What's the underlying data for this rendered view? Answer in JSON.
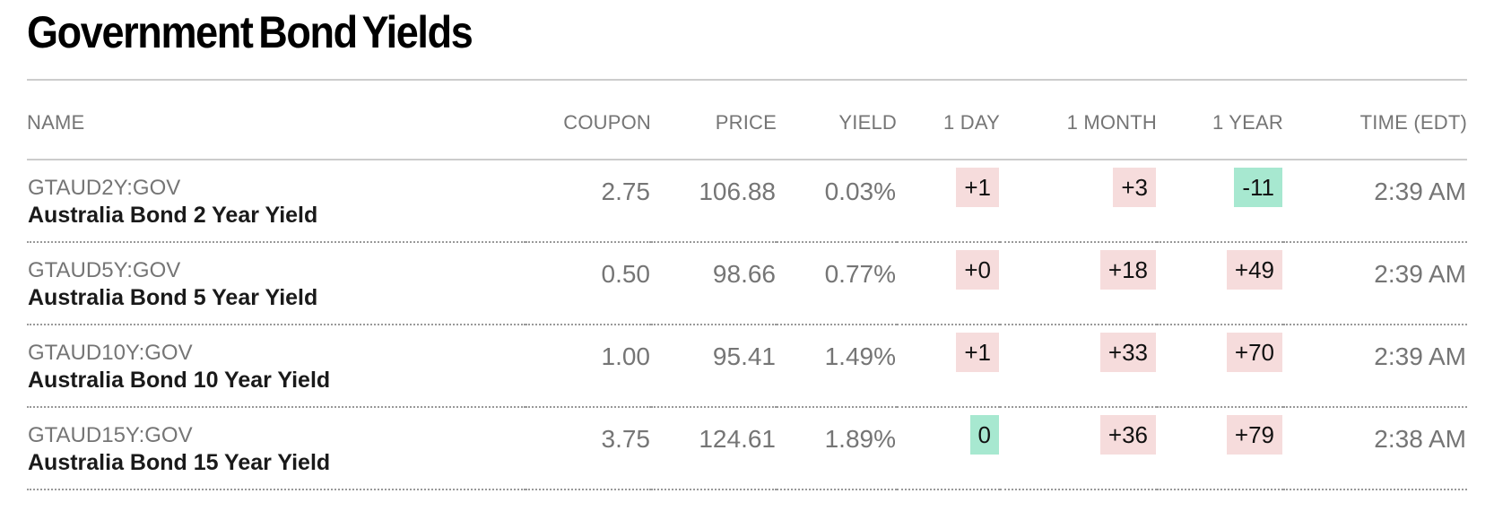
{
  "page": {
    "title": "Government Bond Yields"
  },
  "table": {
    "columns": [
      {
        "label": "NAME"
      },
      {
        "label": "COUPON"
      },
      {
        "label": "PRICE"
      },
      {
        "label": "YIELD"
      },
      {
        "label": "1 DAY"
      },
      {
        "label": "1 MONTH"
      },
      {
        "label": "1 YEAR"
      },
      {
        "label": "TIME (EDT)"
      }
    ],
    "rows": [
      {
        "ticker": "GTAUD2Y:GOV",
        "name": "Australia Bond 2 Year Yield",
        "coupon": "2.75",
        "price": "106.88",
        "yield": "0.03%",
        "day": {
          "text": "+1",
          "color": "red"
        },
        "month": {
          "text": "+3",
          "color": "red"
        },
        "year": {
          "text": "-11",
          "color": "green"
        },
        "time": "2:39 AM"
      },
      {
        "ticker": "GTAUD5Y:GOV",
        "name": "Australia Bond 5 Year Yield",
        "coupon": "0.50",
        "price": "98.66",
        "yield": "0.77%",
        "day": {
          "text": "+0",
          "color": "red"
        },
        "month": {
          "text": "+18",
          "color": "red"
        },
        "year": {
          "text": "+49",
          "color": "red"
        },
        "time": "2:39 AM"
      },
      {
        "ticker": "GTAUD10Y:GOV",
        "name": "Australia Bond 10 Year Yield",
        "coupon": "1.00",
        "price": "95.41",
        "yield": "1.49%",
        "day": {
          "text": "+1",
          "color": "red"
        },
        "month": {
          "text": "+33",
          "color": "red"
        },
        "year": {
          "text": "+70",
          "color": "red"
        },
        "time": "2:39 AM"
      },
      {
        "ticker": "GTAUD15Y:GOV",
        "name": "Australia Bond 15 Year Yield",
        "coupon": "3.75",
        "price": "124.61",
        "yield": "1.89%",
        "day": {
          "text": "0",
          "color": "green"
        },
        "month": {
          "text": "+36",
          "color": "red"
        },
        "year": {
          "text": "+79",
          "color": "red"
        },
        "time": "2:38 AM"
      }
    ]
  },
  "colors": {
    "red_bg": "#f6dcdc",
    "green_bg": "#a7e8d0",
    "accent_text": "#000000",
    "muted_text": "#757575",
    "line": "#cccccc",
    "dotted_line": "#999999"
  }
}
